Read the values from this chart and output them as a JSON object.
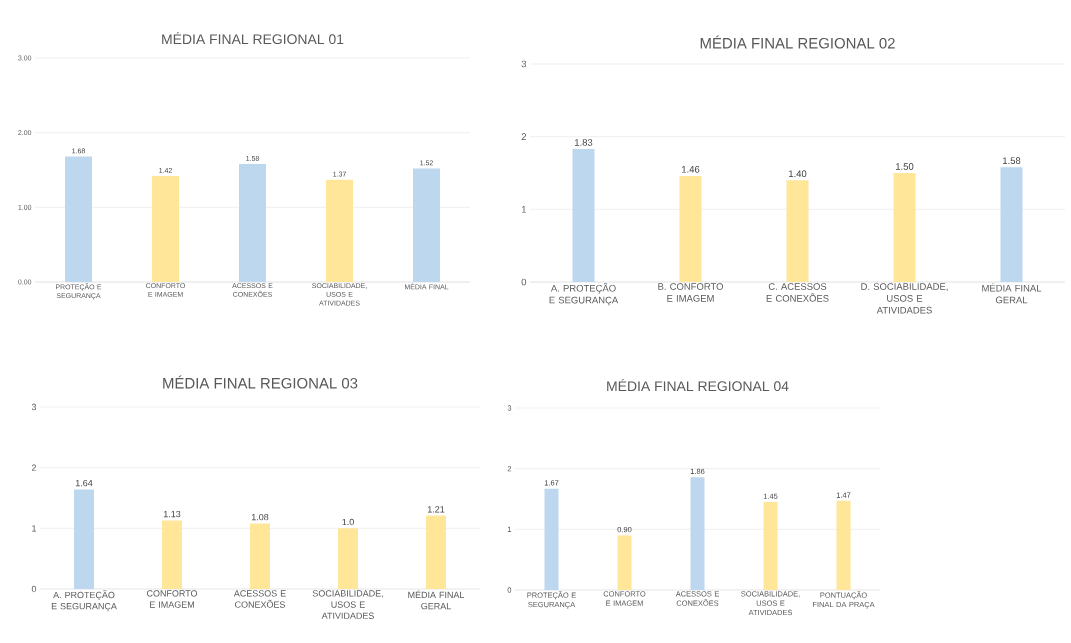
{
  "chart_data": [
    {
      "type": "bar",
      "title": "MÉDIA FINAL REGIONAL 01",
      "categories": [
        "PROTEÇÃO E SEGURANÇA",
        "CONFORTO E IMAGEM",
        "ACESSOS E CONEXÕES",
        "SOCIABILIDADE, USOS E ATIVIDADES",
        "MÉDIA FINAL"
      ],
      "values": [
        1.68,
        1.42,
        1.58,
        1.37,
        1.52
      ],
      "value_labels": [
        "1.68",
        "1.42",
        "1.58",
        "1.37",
        "1.52"
      ],
      "colors": [
        "#bdd7ee",
        "#ffe699",
        "#bdd7ee",
        "#ffe699",
        "#bdd7ee"
      ],
      "ylim": [
        0,
        3
      ],
      "yticks": [
        {
          "value": 0,
          "label": "0.00"
        },
        {
          "value": 1,
          "label": "1.00"
        },
        {
          "value": 2,
          "label": "2.00"
        },
        {
          "value": 3,
          "label": "3.00"
        }
      ],
      "grid": "y"
    },
    {
      "type": "bar",
      "title": "MÉDIA FINAL REGIONAL 02",
      "categories": [
        "A. PROTEÇÃO E SEGURANÇA",
        "B. CONFORTO E IMAGEM",
        "C. ACESSOS E CONEXÕES",
        "D. SOCIABILIDADE, USOS E ATIVIDADES",
        "MÉDIA FINAL GERAL"
      ],
      "values": [
        1.83,
        1.46,
        1.4,
        1.5,
        1.58
      ],
      "value_labels": [
        "1.83",
        "1.46",
        "1.40",
        "1.50",
        "1.58"
      ],
      "colors": [
        "#bdd7ee",
        "#ffe699",
        "#ffe699",
        "#ffe699",
        "#bdd7ee"
      ],
      "ylim": [
        0,
        3
      ],
      "yticks": [
        0,
        1,
        2,
        3
      ],
      "grid": "y"
    },
    {
      "type": "bar",
      "title": "MÉDIA FINAL REGIONAL 03",
      "categories": [
        "A. PROTEÇÃO E SEGURANÇA",
        "CONFORTO E IMAGEM",
        "ACESSOS E CONEXÕES",
        "SOCIABILIDADE, USOS E ATIVIDADES",
        "MÉDIA FINAL GERAL"
      ],
      "values": [
        1.64,
        1.13,
        1.08,
        1.0,
        1.21
      ],
      "value_labels": [
        "1.64",
        "1.13",
        "1.08",
        "1.0",
        "1.21"
      ],
      "colors": [
        "#bdd7ee",
        "#ffe699",
        "#ffe699",
        "#ffe699",
        "#ffe699"
      ],
      "ylim": [
        0,
        3
      ],
      "yticks": [
        0,
        1,
        2,
        3
      ],
      "grid": "y"
    },
    {
      "type": "bar",
      "title": "MÉDIA FINAL REGIONAL 04",
      "categories": [
        "PROTEÇÃO E SEGURANÇA",
        "CONFORTO E IMAGEM",
        "ACESSOS E CONEXÕES",
        "SOCIABILIDADE, USOS E ATIVIDADES",
        "PONTUAÇÃO FINAL DA PRAÇA"
      ],
      "values": [
        1.67,
        0.9,
        1.86,
        1.45,
        1.47
      ],
      "value_labels": [
        "1.67",
        "0.90",
        "1.86",
        "1.45",
        "1.47"
      ],
      "colors": [
        "#bdd7ee",
        "#ffe699",
        "#bdd7ee",
        "#ffe699",
        "#ffe699"
      ],
      "ylim": [
        0,
        3
      ],
      "yticks": [
        0,
        1,
        2,
        3
      ],
      "grid": "y"
    }
  ]
}
